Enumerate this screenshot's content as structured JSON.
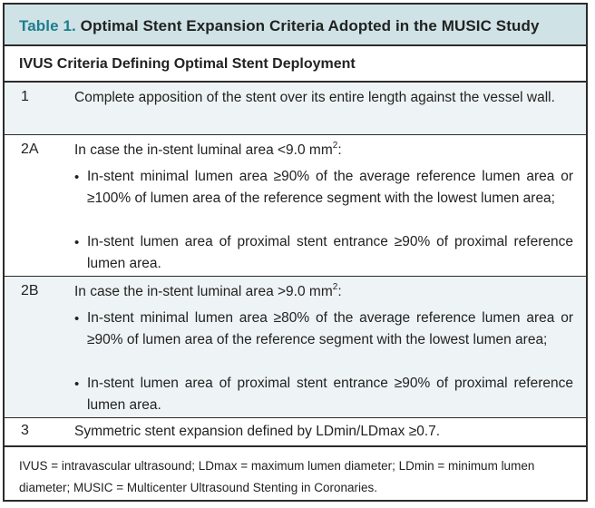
{
  "title": {
    "label": "Table 1.",
    "text": " Optimal Stent Expansion Criteria Adopted in the MUSIC Study"
  },
  "header": "IVUS Criteria Defining Optimal Stent Deployment",
  "rows": {
    "r1": {
      "num": "1",
      "text": "Complete apposition of the stent over its entire length against the vessel wall."
    },
    "r2a": {
      "num": "2A",
      "text_pre": "In case the in-stent luminal area <9.0 mm",
      "sup": "2",
      "text_post": ":",
      "bullet1": "In-stent minimal lumen area ≥90% of the average reference lumen area or ≥100% of lumen area of the reference segment with the lowest lumen area;",
      "bullet2": "In-stent lumen area of proximal stent entrance ≥90% of proximal reference lumen area."
    },
    "r2b": {
      "num": "2B",
      "text_pre": "In case the in-stent luminal area >9.0 mm",
      "sup": "2",
      "text_post": ":",
      "bullet1": "In-stent minimal lumen area ≥80% of the average reference lumen area or ≥90% of lumen area of the reference segment with the lowest lumen area;",
      "bullet2": "In-stent lumen area of proximal stent entrance ≥90% of proximal reference lumen area."
    },
    "r3": {
      "num": "3",
      "text": "Symmetric stent expansion defined by LDmin/LDmax ≥0.7."
    }
  },
  "bullet_glyph": "•",
  "footnote": "IVUS = intravascular ultrasound; LDmax = maximum lumen diameter; LDmin = minimum lumen diameter; MUSIC = Multicenter Ultrasound Stenting in Coronaries.",
  "colors": {
    "title_bg": "#cfe2e5",
    "title_label": "#1e7d8f",
    "row_shade": "#eef4f5",
    "border": "#2b2b2b"
  }
}
